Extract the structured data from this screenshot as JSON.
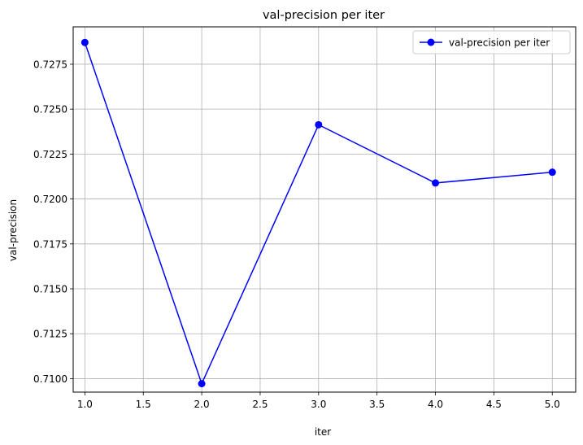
{
  "chart_data": {
    "type": "line",
    "title": "val-precision per iter",
    "xlabel": "iter",
    "ylabel": "val-precision",
    "x": [
      1.0,
      2.0,
      3.0,
      4.0,
      5.0
    ],
    "series": [
      {
        "name": "val-precision per iter",
        "values": [
          0.72871,
          0.70972,
          0.72413,
          0.72089,
          0.72149
        ],
        "color": "#0000ff",
        "marker": "circle"
      }
    ],
    "xlim": [
      0.9,
      5.2
    ],
    "ylim": [
      0.70925,
      0.72958
    ],
    "xticks": [
      "1.0",
      "1.5",
      "2.0",
      "2.5",
      "3.0",
      "3.5",
      "4.0",
      "4.5",
      "5.0"
    ],
    "yticks": [
      "0.7100",
      "0.7125",
      "0.7150",
      "0.7175",
      "0.7200",
      "0.7225",
      "0.7250",
      "0.7275"
    ],
    "grid": true,
    "grid_color": "#b0b0b0",
    "legend_position": "top-right"
  }
}
